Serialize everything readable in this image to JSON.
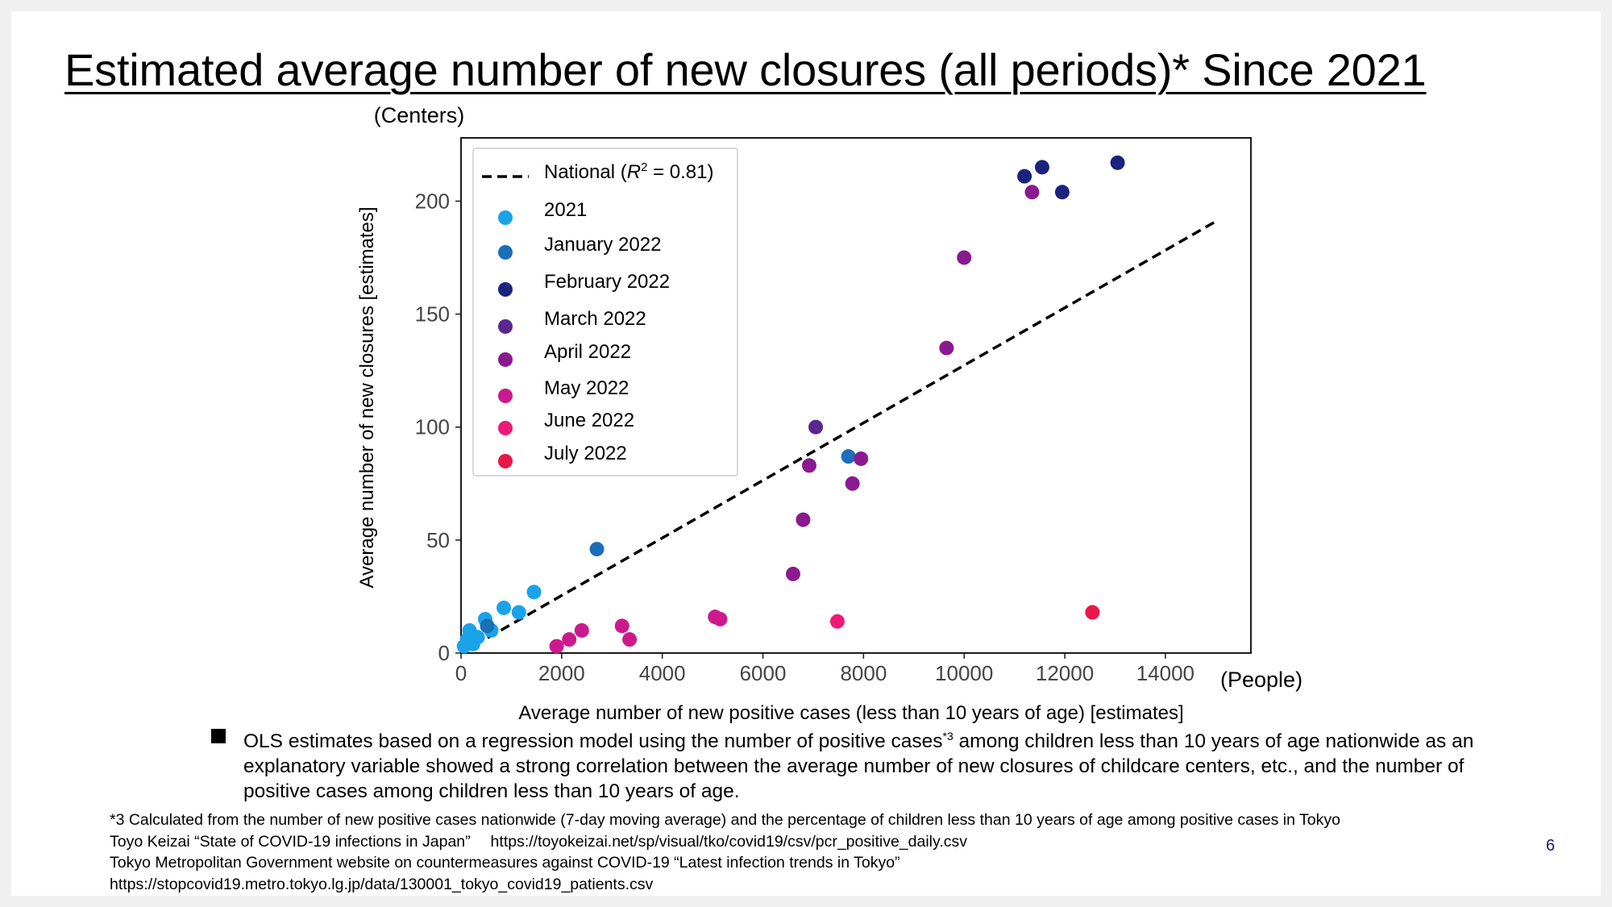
{
  "slide": {
    "title": "Estimated average number of new closures (all periods)* Since 2021",
    "bullet": {
      "part1": "OLS estimates based on a regression model using the number of positive cases",
      "sup": "*3",
      "part2": " among children less than 10 years of age nationwide as an explanatory variable showed a strong correlation between the average number of new closures of childcare centers, etc., and the number of positive cases among children less than 10 years of age."
    },
    "footnotes": [
      "*3 Calculated from the number of new positive cases nationwide (7-day moving average) and the percentage of children less than 10 years of age among positive cases in Tokyo",
      "Toyo Keizai “State of COVID-19 infections in Japan”  https://toyokeizai.net/sp/visual/tko/covid19/csv/pcr_positive_daily.csv",
      "Tokyo Metropolitan Government website on countermeasures against COVID-19 “Latest infection trends in Tokyo”",
      "https://stopcovid19.metro.tokyo.lg.jp/data/130001_tokyo_covid19_patients.csv"
    ],
    "page_number": "6"
  },
  "chart_data": {
    "type": "scatter",
    "xlabel": "Average number of new positive cases (less than 10 years of age) [estimates]",
    "ylabel": "Average number of new closures [estimates]",
    "x_unit": "(People)",
    "y_unit": "(Centers)",
    "xlim": [
      0,
      15700
    ],
    "ylim": [
      0,
      228
    ],
    "x_ticks": [
      0,
      2000,
      4000,
      6000,
      8000,
      10000,
      12000,
      14000
    ],
    "y_ticks": [
      0,
      50,
      100,
      150,
      200
    ],
    "legend_position": "top-left",
    "regression": {
      "name_prefix": "National (",
      "name_r": "R",
      "name_sup": "2",
      "name_suffix": " = 0.81)",
      "x": [
        0,
        15000
      ],
      "y": [
        0,
        191
      ],
      "color": "#000000"
    },
    "series": [
      {
        "name": "2021",
        "color": "#1aa3e8",
        "points": [
          [
            60,
            3
          ],
          [
            120,
            6
          ],
          [
            170,
            10
          ],
          [
            240,
            4
          ],
          [
            330,
            7
          ],
          [
            480,
            15
          ],
          [
            600,
            10
          ],
          [
            850,
            20
          ],
          [
            1150,
            18
          ],
          [
            1450,
            27
          ],
          [
            200,
            8
          ]
        ]
      },
      {
        "name": "January 2022",
        "color": "#1a6fb8",
        "points": [
          [
            520,
            12
          ],
          [
            2700,
            46
          ],
          [
            7700,
            87
          ]
        ]
      },
      {
        "name": "February 2022",
        "color": "#1a237e",
        "points": [
          [
            11200,
            211
          ],
          [
            11550,
            215
          ],
          [
            11950,
            204
          ],
          [
            13050,
            217
          ]
        ]
      },
      {
        "name": "March 2022",
        "color": "#5b2690",
        "points": [
          [
            7050,
            100
          ]
        ]
      },
      {
        "name": "April 2022",
        "color": "#8a1a8f",
        "points": [
          [
            6600,
            35
          ],
          [
            6800,
            59
          ],
          [
            6920,
            83
          ],
          [
            7780,
            75
          ],
          [
            7950,
            86
          ],
          [
            9650,
            135
          ],
          [
            10000,
            175
          ],
          [
            11350,
            204
          ]
        ]
      },
      {
        "name": "May 2022",
        "color": "#cc1a8e",
        "points": [
          [
            1900,
            3
          ],
          [
            2150,
            6
          ],
          [
            2400,
            10
          ],
          [
            3200,
            12
          ],
          [
            3350,
            6
          ],
          [
            5050,
            16
          ],
          [
            5150,
            15
          ]
        ]
      },
      {
        "name": "June 2022",
        "color": "#ee1a78",
        "points": [
          [
            7480,
            14
          ]
        ]
      },
      {
        "name": "July 2022",
        "color": "#e8174a",
        "points": [
          [
            12550,
            18
          ]
        ]
      }
    ]
  }
}
